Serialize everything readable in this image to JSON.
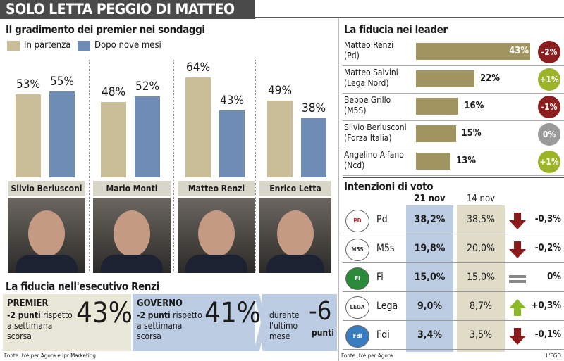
{
  "title": "SOLO LETTA PEGGIO DI MATTEO",
  "gradimento": {
    "heading": "Il gradimento dei premier nei sondaggi",
    "legend": [
      "In partenza",
      "Dopo nove mesi"
    ],
    "colors": {
      "partenza": "#c9be98",
      "dopo": "#6f8db4"
    }
  },
  "chart_data": [
    {
      "type": "bar",
      "title": "Il gradimento dei premier nei sondaggi",
      "categories": [
        "Silvio Berlusconi",
        "Mario Monti",
        "Matteo Renzi",
        "Enrico Letta"
      ],
      "series": [
        {
          "name": "In partenza",
          "values": [
            53,
            48,
            64,
            49
          ],
          "labels": [
            "53%",
            "48%",
            "64%",
            "49%"
          ]
        },
        {
          "name": "Dopo nove mesi",
          "values": [
            55,
            52,
            43,
            38
          ],
          "labels": [
            "55%",
            "52%",
            "43%",
            "38%"
          ]
        }
      ],
      "ylim": [
        0,
        70
      ]
    },
    {
      "type": "bar",
      "title": "La fiducia nei leader",
      "categories": [
        "Matteo Renzi (Pd)",
        "Matteo Salvini (Lega Nord)",
        "Beppe Grillo (M5S)",
        "Silvio Berlusconi (Forza Italia)",
        "Angelino Alfano (Ncd)"
      ],
      "values": [
        43,
        22,
        16,
        15,
        13
      ],
      "orientation": "horizontal"
    },
    {
      "type": "table",
      "title": "Intenzioni di voto",
      "columns": [
        "21 nov",
        "14 nov"
      ],
      "rows": [
        {
          "party": "Pd",
          "v21": "38,2%",
          "v14": "38,5%",
          "delta": "-0,3%",
          "trend": "down"
        },
        {
          "party": "M5s",
          "v21": "19,8%",
          "v14": "20,0%",
          "delta": "-0,2%",
          "trend": "down"
        },
        {
          "party": "Fi",
          "v21": "15,0%",
          "v14": "15,0%",
          "delta": "0%",
          "trend": "equal"
        },
        {
          "party": "Lega",
          "v21": "9,0%",
          "v14": "8,7%",
          "delta": "+0,3%",
          "trend": "up"
        },
        {
          "party": "Fdi",
          "v21": "3,4%",
          "v14": "3,5%",
          "delta": "-0,1%",
          "trend": "down"
        }
      ]
    }
  ],
  "leaders": {
    "heading": "La fiducia nei leader",
    "items": [
      {
        "name": "Matteo Renzi",
        "party": "(Pd)",
        "value": 43,
        "label": "43%",
        "change": "-2%",
        "change_color": "#8b1e1e"
      },
      {
        "name": "Matteo Salvini",
        "party": "(Lega Nord)",
        "value": 22,
        "label": "22%",
        "change": "+1%",
        "change_color": "#9bb42a"
      },
      {
        "name": "Beppe Grillo",
        "party": "(M5S)",
        "value": 16,
        "label": "16%",
        "change": "-1%",
        "change_color": "#8b1e1e"
      },
      {
        "name": "Silvio Berlusconi",
        "party": "(Forza Italia)",
        "value": 15,
        "label": "15%",
        "change": "0%",
        "change_color": "#9a9a9a"
      },
      {
        "name": "Angelino Alfano",
        "party": "(Ncd)",
        "value": 13,
        "label": "13%",
        "change": "+1%",
        "change_color": "#9bb42a"
      }
    ]
  },
  "voto": {
    "heading": "Intenzioni di voto",
    "col1": "21 nov",
    "col2": "14 nov",
    "logos": [
      "PD",
      "M5S",
      "FI",
      "LEGA",
      "FdI"
    ],
    "source": "Fonte: Ixè per Agorà",
    "credit": "L'EGO"
  },
  "esecutivo": {
    "heading": "La fiducia nell'esecutivo Renzi",
    "premier": {
      "label": "PREMIER",
      "bold": "-2 punti",
      "text1": " rispetto",
      "text2": "a settimana",
      "text3": "scorsa",
      "value": "43%"
    },
    "governo": {
      "label": "GOVERNO",
      "bold": "-2 punti",
      "text1": " rispetto",
      "text2": "a settimana",
      "text3": "scorsa",
      "value": "41%"
    },
    "mese": {
      "text1": "durante",
      "text2": "l'ultimo",
      "text3": "mese",
      "value": "-6",
      "unit": "punti"
    },
    "source": "Fonte: Ixè per Agorà e Ipr Marketing"
  }
}
